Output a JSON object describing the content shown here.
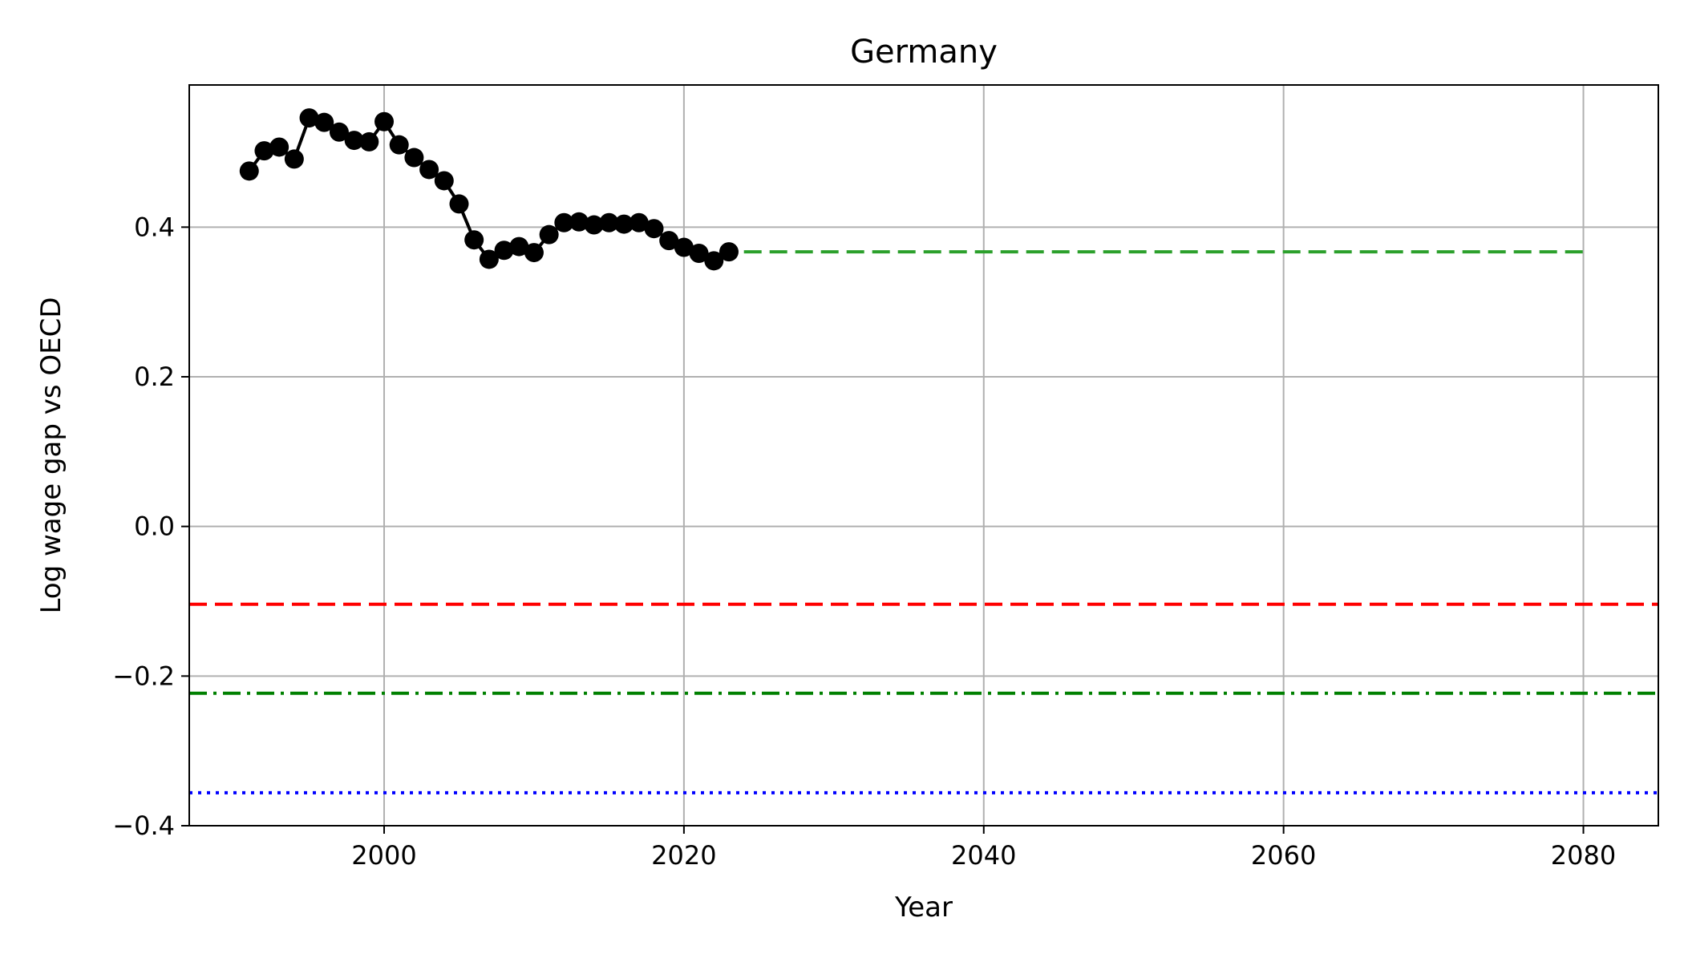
{
  "chart_data": {
    "type": "line",
    "title": "Germany",
    "xlabel": "Year",
    "ylabel": "Log wage gap vs OECD",
    "xlim": [
      1987,
      2085
    ],
    "ylim": [
      -0.4,
      0.59
    ],
    "grid": true,
    "x_ticks": [
      2000,
      2020,
      2040,
      2060,
      2080
    ],
    "y_ticks": [
      -0.4,
      -0.2,
      0.0,
      0.2,
      0.4
    ],
    "x_tick_labels": [
      "2000",
      "2020",
      "2040",
      "2060",
      "2080"
    ],
    "y_tick_labels": [
      "−0.4",
      "−0.2",
      "0.0",
      "0.2",
      "0.4"
    ],
    "series": [
      {
        "style": "line-markers",
        "color": "#000000",
        "x": [
          1991,
          1992,
          1993,
          1994,
          1995,
          1996,
          1997,
          1998,
          1999,
          2000,
          2001,
          2002,
          2003,
          2004,
          2005,
          2006,
          2007,
          2008,
          2009,
          2010,
          2011,
          2012,
          2013,
          2014,
          2015,
          2016,
          2017,
          2018,
          2019,
          2020,
          2021,
          2022,
          2023
        ],
        "y": [
          0.475,
          0.502,
          0.507,
          0.491,
          0.546,
          0.54,
          0.527,
          0.516,
          0.514,
          0.541,
          0.51,
          0.493,
          0.477,
          0.462,
          0.431,
          0.383,
          0.357,
          0.369,
          0.374,
          0.366,
          0.39,
          0.406,
          0.407,
          0.403,
          0.406,
          0.404,
          0.406,
          0.398,
          0.382,
          0.373,
          0.365,
          0.355,
          0.367
        ]
      },
      {
        "style": "dashed",
        "color": "#2ca02c",
        "x": [
          2024,
          2080
        ],
        "y": [
          0.367,
          0.367
        ]
      }
    ],
    "reference_lines": [
      {
        "y": -0.104,
        "color": "#ff0000",
        "style": "dashed"
      },
      {
        "y": -0.223,
        "color": "#008000",
        "style": "dashdot"
      },
      {
        "y": -0.356,
        "color": "#0000ff",
        "style": "dotted"
      }
    ]
  }
}
